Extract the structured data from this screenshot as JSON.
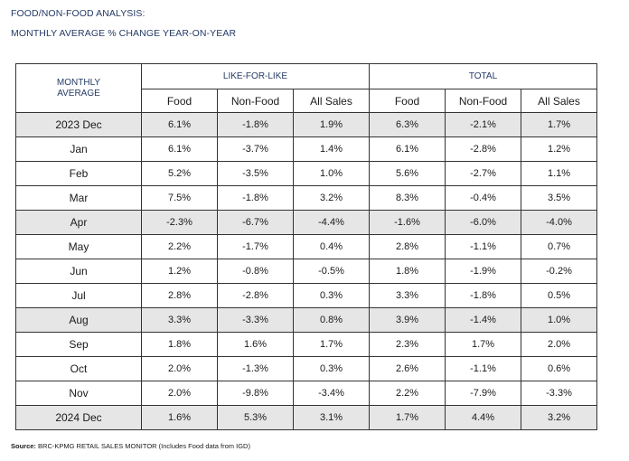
{
  "title_line1": "FOOD/NON-FOOD ANALYSIS:",
  "title_line2": "MONTHLY AVERAGE % CHANGE YEAR-ON-YEAR",
  "table": {
    "corner_header_line1": "MONTHLY",
    "corner_header_line2": "AVERAGE",
    "group_headers": [
      "LIKE-FOR-LIKE",
      "TOTAL"
    ],
    "column_headers": [
      "Food",
      "Non-Food",
      "All Sales",
      "Food",
      "Non-Food",
      "All Sales"
    ],
    "rows": [
      {
        "month": "2023 Dec",
        "values": [
          "6.1%",
          "-1.8%",
          "1.9%",
          "6.3%",
          "-2.1%",
          "1.7%"
        ]
      },
      {
        "month": "Jan",
        "values": [
          "6.1%",
          "-3.7%",
          "1.4%",
          "6.1%",
          "-2.8%",
          "1.2%"
        ]
      },
      {
        "month": "Feb",
        "values": [
          "5.2%",
          "-3.5%",
          "1.0%",
          "5.6%",
          "-2.7%",
          "1.1%"
        ]
      },
      {
        "month": "Mar",
        "values": [
          "7.5%",
          "-1.8%",
          "3.2%",
          "8.3%",
          "-0.4%",
          "3.5%"
        ]
      },
      {
        "month": "Apr",
        "values": [
          "-2.3%",
          "-6.7%",
          "-4.4%",
          "-1.6%",
          "-6.0%",
          "-4.0%"
        ]
      },
      {
        "month": "May",
        "values": [
          "2.2%",
          "-1.7%",
          "0.4%",
          "2.8%",
          "-1.1%",
          "0.7%"
        ]
      },
      {
        "month": "Jun",
        "values": [
          "1.2%",
          "-0.8%",
          "-0.5%",
          "1.8%",
          "-1.9%",
          "-0.2%"
        ]
      },
      {
        "month": "Jul",
        "values": [
          "2.8%",
          "-2.8%",
          "0.3%",
          "3.3%",
          "-1.8%",
          "0.5%"
        ]
      },
      {
        "month": "Aug",
        "values": [
          "3.3%",
          "-3.3%",
          "0.8%",
          "3.9%",
          "-1.4%",
          "1.0%"
        ]
      },
      {
        "month": "Sep",
        "values": [
          "1.8%",
          "1.6%",
          "1.7%",
          "2.3%",
          "1.7%",
          "2.0%"
        ]
      },
      {
        "month": "Oct",
        "values": [
          "2.0%",
          "-1.3%",
          "0.3%",
          "2.6%",
          "-1.1%",
          "0.6%"
        ]
      },
      {
        "month": "Nov",
        "values": [
          "2.0%",
          "-9.8%",
          "-3.4%",
          "2.2%",
          "-7.9%",
          "-3.3%"
        ]
      },
      {
        "month": "2024 Dec",
        "values": [
          "1.6%",
          "5.3%",
          "3.1%",
          "1.7%",
          "4.4%",
          "3.2%"
        ]
      }
    ]
  },
  "source_label": "Source:",
  "source_text": " BRC-KPMG RETAIL SALES MONITOR (Includes Food data from IGD)",
  "colors": {
    "heading_text": "#243a66",
    "shaded_row": "#e6e6e6",
    "border": "#333333"
  }
}
